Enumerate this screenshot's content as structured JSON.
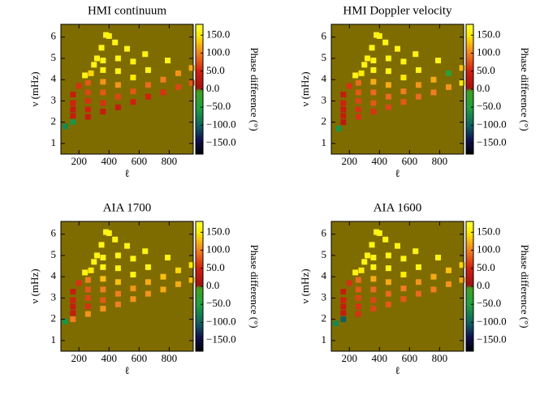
{
  "chart_data": [
    {
      "type": "heatmap",
      "title": "HMI continuum",
      "xlabel": "ℓ",
      "ylabel": "ν (mHz)",
      "colorbar_label": "Phase difference (°)",
      "xlim": [
        80,
        960
      ],
      "ylim": [
        0.5,
        6.6
      ],
      "xticks": [
        200,
        400,
        600,
        800
      ],
      "yticks": [
        1,
        2,
        3,
        4,
        5,
        6
      ],
      "zlim": [
        -180,
        180
      ],
      "zticks": [
        {
          "value": -150,
          "label": "−150.0"
        },
        {
          "value": -100,
          "label": "−100.0"
        },
        {
          "value": -50,
          "label": "−50.0"
        },
        {
          "value": 0,
          "label": "0.0"
        },
        {
          "value": 50,
          "label": "50.0"
        },
        {
          "value": 100,
          "label": "100.0"
        },
        {
          "value": 150,
          "label": "150.0"
        }
      ],
      "background": "#7f6c00",
      "x": [
        110,
        160,
        260,
        360,
        460,
        560,
        660,
        760,
        860,
        950,
        160,
        260,
        360,
        460,
        560,
        660,
        760,
        860,
        950,
        160,
        260,
        360,
        460,
        560,
        660,
        790,
        160,
        260,
        360,
        460,
        560,
        640,
        160,
        260,
        360,
        460,
        520,
        200,
        280,
        360,
        440,
        240,
        320,
        400,
        300,
        350,
        380
      ],
      "y": [
        1.8,
        2.0,
        2.25,
        2.5,
        2.7,
        2.95,
        3.2,
        3.4,
        3.65,
        3.85,
        2.3,
        2.6,
        2.9,
        3.2,
        3.45,
        3.75,
        4.0,
        4.3,
        4.55,
        2.6,
        3.0,
        3.4,
        3.75,
        4.1,
        4.45,
        4.9,
        2.9,
        3.4,
        3.9,
        4.4,
        4.85,
        5.2,
        3.3,
        3.85,
        4.45,
        5.0,
        5.45,
        3.7,
        4.3,
        4.9,
        5.75,
        4.2,
        5.0,
        6.05,
        4.7,
        5.5,
        6.1
      ],
      "values": [
        -70,
        -60,
        40,
        40,
        40,
        50,
        50,
        60,
        70,
        80,
        40,
        50,
        60,
        70,
        80,
        90,
        100,
        110,
        120,
        40,
        60,
        80,
        110,
        150,
        160,
        160,
        50,
        70,
        110,
        160,
        160,
        160,
        40,
        80,
        160,
        160,
        160,
        60,
        140,
        160,
        160,
        160,
        160,
        160,
        160,
        160,
        160
      ]
    },
    {
      "type": "heatmap",
      "title": "HMI Doppler velocity",
      "xlabel": "ℓ",
      "ylabel": "ν (mHz)",
      "colorbar_label": "Phase difference (°)",
      "xlim": [
        80,
        960
      ],
      "ylim": [
        0.5,
        6.6
      ],
      "xticks": [
        200,
        400,
        600,
        800
      ],
      "yticks": [
        1,
        2,
        3,
        4,
        5,
        6
      ],
      "zlim": [
        -180,
        180
      ],
      "zticks": [
        {
          "value": -150,
          "label": "−150.0"
        },
        {
          "value": -100,
          "label": "−100.0"
        },
        {
          "value": -50,
          "label": "−50.0"
        },
        {
          "value": 0,
          "label": "0.0"
        },
        {
          "value": 50,
          "label": "50.0"
        },
        {
          "value": 100,
          "label": "100.0"
        },
        {
          "value": 150,
          "label": "150.0"
        }
      ],
      "background": "#7f6c00",
      "x": [
        130,
        160,
        260,
        360,
        460,
        560,
        660,
        760,
        860,
        950,
        160,
        260,
        360,
        460,
        560,
        660,
        760,
        860,
        950,
        160,
        260,
        360,
        460,
        560,
        660,
        790,
        160,
        260,
        360,
        460,
        560,
        640,
        160,
        260,
        360,
        460,
        520,
        200,
        280,
        360,
        440,
        240,
        320,
        400,
        300,
        350,
        380
      ],
      "y": [
        1.7,
        2.0,
        2.25,
        2.5,
        2.7,
        2.95,
        3.2,
        3.4,
        3.65,
        3.85,
        2.3,
        2.6,
        2.9,
        3.2,
        3.45,
        3.75,
        4.0,
        4.3,
        4.55,
        2.6,
        3.0,
        3.4,
        3.75,
        4.1,
        4.45,
        4.9,
        2.9,
        3.4,
        3.9,
        4.4,
        4.85,
        5.2,
        3.3,
        3.85,
        4.45,
        5.0,
        5.45,
        3.7,
        4.3,
        4.9,
        5.75,
        4.2,
        5.0,
        6.05,
        4.7,
        5.5,
        6.1
      ],
      "values": [
        -60,
        30,
        60,
        60,
        70,
        80,
        90,
        100,
        110,
        150,
        40,
        60,
        80,
        90,
        100,
        110,
        120,
        -40,
        130,
        40,
        70,
        90,
        120,
        150,
        160,
        160,
        50,
        80,
        120,
        160,
        160,
        160,
        40,
        90,
        160,
        160,
        160,
        60,
        150,
        160,
        160,
        160,
        160,
        160,
        160,
        160,
        160
      ]
    },
    {
      "type": "heatmap",
      "title": "AIA 1700",
      "xlabel": "ℓ",
      "ylabel": "ν (mHz)",
      "colorbar_label": "Phase difference (°)",
      "xlim": [
        80,
        960
      ],
      "ylim": [
        0.5,
        6.6
      ],
      "xticks": [
        200,
        400,
        600,
        800
      ],
      "yticks": [
        1,
        2,
        3,
        4,
        5,
        6
      ],
      "zlim": [
        -180,
        180
      ],
      "zticks": [
        {
          "value": -150,
          "label": "−150.0"
        },
        {
          "value": -100,
          "label": "−100.0"
        },
        {
          "value": -50,
          "label": "−50.0"
        },
        {
          "value": 0,
          "label": "0.0"
        },
        {
          "value": 50,
          "label": "50.0"
        },
        {
          "value": 100,
          "label": "100.0"
        },
        {
          "value": 150,
          "label": "150.0"
        }
      ],
      "background": "#7f6c00",
      "x": [
        110,
        160,
        260,
        360,
        460,
        560,
        660,
        760,
        860,
        950,
        160,
        260,
        360,
        460,
        560,
        660,
        760,
        860,
        950,
        160,
        260,
        360,
        460,
        560,
        660,
        790,
        160,
        260,
        360,
        460,
        560,
        640,
        160,
        260,
        360,
        460,
        520,
        200,
        280,
        360,
        440,
        240,
        320,
        400,
        300,
        350,
        380
      ],
      "y": [
        1.9,
        2.0,
        2.25,
        2.5,
        2.7,
        2.95,
        3.2,
        3.4,
        3.65,
        3.85,
        2.3,
        2.6,
        2.9,
        3.2,
        3.45,
        3.75,
        4.0,
        4.3,
        4.55,
        2.6,
        3.0,
        3.4,
        3.75,
        4.1,
        4.45,
        4.9,
        2.9,
        3.4,
        3.9,
        4.4,
        4.85,
        5.2,
        3.3,
        3.85,
        4.45,
        5.0,
        5.45,
        3.7,
        4.3,
        4.9,
        5.75,
        4.2,
        5.0,
        6.05,
        4.7,
        5.5,
        6.1
      ],
      "values": [
        -60,
        100,
        110,
        110,
        100,
        110,
        110,
        120,
        120,
        130,
        40,
        60,
        80,
        100,
        110,
        120,
        130,
        140,
        150,
        40,
        70,
        100,
        130,
        160,
        160,
        160,
        50,
        80,
        130,
        160,
        160,
        160,
        40,
        100,
        160,
        160,
        160,
        60,
        150,
        160,
        160,
        160,
        160,
        160,
        160,
        160,
        160
      ]
    },
    {
      "type": "heatmap",
      "title": "AIA 1600",
      "xlabel": "ℓ",
      "ylabel": "ν (mHz)",
      "colorbar_label": "Phase difference (°)",
      "xlim": [
        80,
        960
      ],
      "ylim": [
        0.5,
        6.6
      ],
      "xticks": [
        200,
        400,
        600,
        800
      ],
      "yticks": [
        1,
        2,
        3,
        4,
        5,
        6
      ],
      "zlim": [
        -180,
        180
      ],
      "zticks": [
        {
          "value": -150,
          "label": "−150.0"
        },
        {
          "value": -100,
          "label": "−100.0"
        },
        {
          "value": -50,
          "label": "−50.0"
        },
        {
          "value": 0,
          "label": "0.0"
        },
        {
          "value": 50,
          "label": "50.0"
        },
        {
          "value": 100,
          "label": "100.0"
        },
        {
          "value": 150,
          "label": "150.0"
        }
      ],
      "background": "#7f6c00",
      "x": [
        110,
        160,
        260,
        360,
        460,
        560,
        660,
        760,
        860,
        950,
        160,
        260,
        360,
        460,
        560,
        660,
        760,
        860,
        950,
        160,
        260,
        360,
        460,
        560,
        660,
        790,
        160,
        260,
        360,
        460,
        560,
        640,
        160,
        260,
        360,
        460,
        520,
        200,
        280,
        360,
        440,
        240,
        320,
        400,
        300,
        350,
        380
      ],
      "y": [
        1.8,
        2.0,
        2.25,
        2.5,
        2.7,
        2.95,
        3.2,
        3.4,
        3.65,
        3.85,
        2.3,
        2.6,
        2.9,
        3.2,
        3.45,
        3.75,
        4.0,
        4.3,
        4.55,
        2.6,
        3.0,
        3.4,
        3.75,
        4.1,
        4.45,
        4.9,
        2.9,
        3.4,
        3.9,
        4.4,
        4.85,
        5.2,
        3.3,
        3.85,
        4.45,
        5.0,
        5.45,
        3.7,
        4.3,
        4.9,
        5.75,
        4.2,
        5.0,
        6.05,
        4.7,
        5.5,
        6.1
      ],
      "values": [
        -70,
        -100,
        60,
        70,
        80,
        80,
        90,
        100,
        110,
        120,
        40,
        60,
        70,
        90,
        100,
        110,
        120,
        130,
        140,
        40,
        70,
        90,
        120,
        150,
        160,
        160,
        50,
        80,
        120,
        160,
        160,
        160,
        40,
        90,
        160,
        160,
        160,
        60,
        150,
        160,
        160,
        160,
        160,
        160,
        160,
        160,
        160
      ]
    }
  ]
}
